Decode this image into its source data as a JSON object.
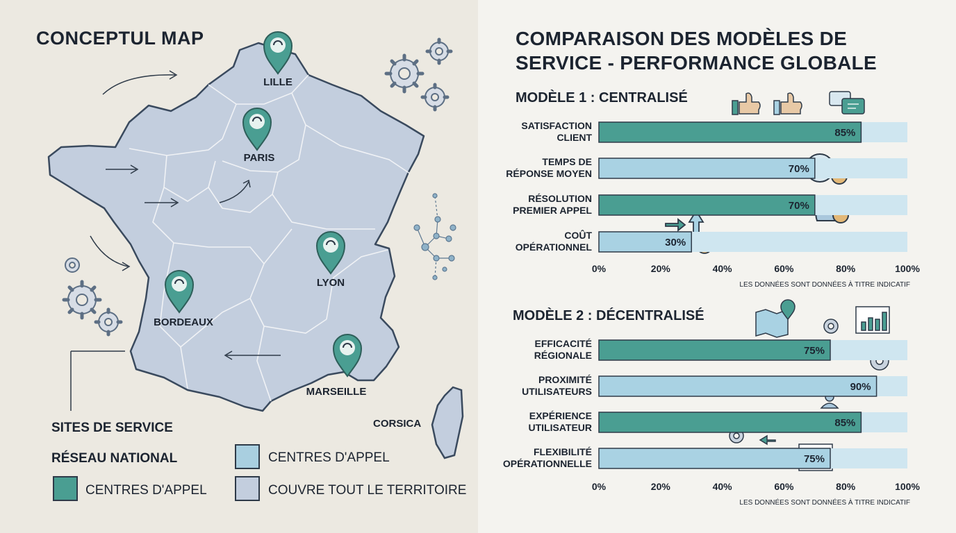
{
  "map": {
    "title": "CONCEPTUL MAP",
    "cities": [
      {
        "name": "LILLE"
      },
      {
        "name": "PARIS"
      },
      {
        "name": "LYON"
      },
      {
        "name": "BORDEAUX"
      },
      {
        "name": "MARSEILLE"
      }
    ],
    "corsica": "CORSICA",
    "legend": {
      "sites": "SITES DE SERVICE",
      "network": "RÉSEAU NATIONAL",
      "call_centers_1": "CENTRES D'APPEL",
      "call_centers_2": "CENTRES D'APPEL",
      "coverage": "COUVRE TOUT LE TERRITOIRE"
    }
  },
  "colors": {
    "teal": "#4a9e92",
    "light_blue": "#a9d2e3",
    "track": "#cfe6f0",
    "map_fill": "#c3cede"
  },
  "chart_data": [
    {
      "type": "bar",
      "title": "COMPARAISON DES MODÈLES DE SERVICE - PERFORMANCE GLOBALE",
      "subtitle": "MODÈLE 1 : CENTRALISÉ",
      "orientation": "horizontal",
      "categories": [
        [
          "SATISFACTION",
          "CLIENT"
        ],
        [
          "TEMPS DE",
          "RÉPONSE MOYEN"
        ],
        [
          "RÉSOLUTION",
          "PREMIER APPEL"
        ],
        [
          "COÛT",
          "OPÉRATIONNEL"
        ]
      ],
      "values": [
        85,
        70,
        70,
        30
      ],
      "value_labels": [
        "85%",
        "70%",
        "70%",
        "30%"
      ],
      "xlim": [
        0,
        100
      ],
      "ticks": [
        "0%",
        "20%",
        "40%",
        "60%",
        "80%",
        "100%"
      ],
      "note": "LES DONNÉES SONT DONNÉES À TITRE INDICATIF"
    },
    {
      "type": "bar",
      "subtitle": "MODÈLE 2 : DÉCENTRALISÉ",
      "orientation": "horizontal",
      "categories": [
        [
          "EFFICACITÉ",
          "RÉGIONALE"
        ],
        [
          "PROXIMITÉ",
          "UTILISATEURS"
        ],
        [
          "EXPÉRIENCE",
          "UTILISATEUR"
        ],
        [
          "FLEXIBILITÉ",
          "OPÉRATIONNELLE"
        ]
      ],
      "values": [
        75,
        90,
        85,
        75
      ],
      "value_labels": [
        "75%",
        "90%",
        "85%",
        "75%"
      ],
      "xlim": [
        0,
        100
      ],
      "ticks": [
        "0%",
        "20%",
        "40%",
        "60%",
        "80%",
        "100%"
      ],
      "note": "LES DONNÉES SONT DONNÉES À TITRE INDICATIF"
    }
  ]
}
